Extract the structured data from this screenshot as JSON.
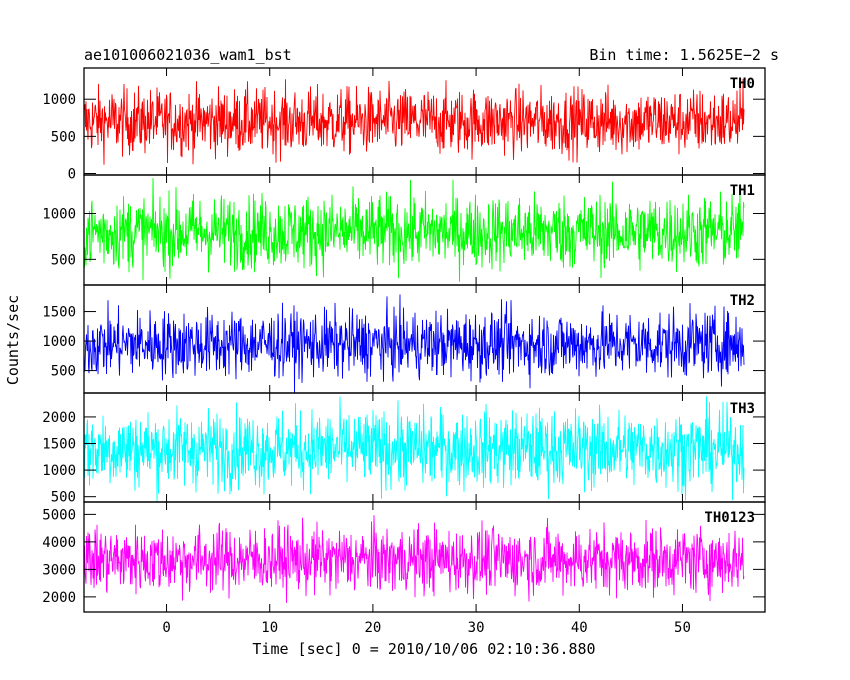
{
  "header": {
    "title_left": "ae101006021036_wam1_bst",
    "title_right": "Bin time: 1.5625E−2 s"
  },
  "chart_data": {
    "type": "line",
    "title": "ae101006021036_wam1_bst",
    "subtitle": "Bin time: 1.5625E−2 s",
    "xlabel": "Time [sec] 0 = 2010/10/06 02:10:36.880",
    "ylabel": "Counts/sec",
    "xlim": [
      -8,
      58
    ],
    "x_data_range": [
      -8,
      56
    ],
    "x_ticks": [
      0,
      10,
      20,
      30,
      40,
      50
    ],
    "x_tick_labels": [
      "0",
      "10",
      "20",
      "30",
      "40",
      "50"
    ],
    "grid": false,
    "panels": [
      {
        "name": "TH0",
        "color": "#ff0000",
        "ylim": [
          -20,
          1420
        ],
        "y_ticks": [
          0,
          500,
          1000
        ],
        "y_tick_labels": [
          "0",
          "500",
          "1000"
        ],
        "typical_range": [
          100,
          1300
        ],
        "mean": 700,
        "spread": 220
      },
      {
        "name": "TH1",
        "color": "#00ff00",
        "ylim": [
          220,
          1420
        ],
        "y_ticks": [
          500,
          1000
        ],
        "y_tick_labels": [
          "500",
          "1000"
        ],
        "typical_range": [
          280,
          1350
        ],
        "mean": 800,
        "spread": 200
      },
      {
        "name": "TH2",
        "color": "#0000ff",
        "ylim": [
          120,
          1950
        ],
        "y_ticks": [
          500,
          1000,
          1500
        ],
        "y_tick_labels": [
          "500",
          "1000",
          "1500"
        ],
        "typical_range": [
          200,
          1900
        ],
        "mean": 950,
        "spread": 280
      },
      {
        "name": "TH3",
        "color": "#00ffff",
        "ylim": [
          400,
          2450
        ],
        "y_ticks": [
          500,
          1000,
          1500,
          2000
        ],
        "y_tick_labels": [
          "500",
          "1000",
          "1500",
          "2000"
        ],
        "typical_range": [
          450,
          2400
        ],
        "mean": 1400,
        "spread": 360
      },
      {
        "name": "TH0123",
        "color": "#ff00ff",
        "ylim": [
          1450,
          5450
        ],
        "y_ticks": [
          2000,
          3000,
          4000,
          5000
        ],
        "y_tick_labels": [
          "2000",
          "3000",
          "4000",
          "5000"
        ],
        "typical_range": [
          1700,
          5300
        ],
        "mean": 3350,
        "spread": 600
      }
    ]
  }
}
